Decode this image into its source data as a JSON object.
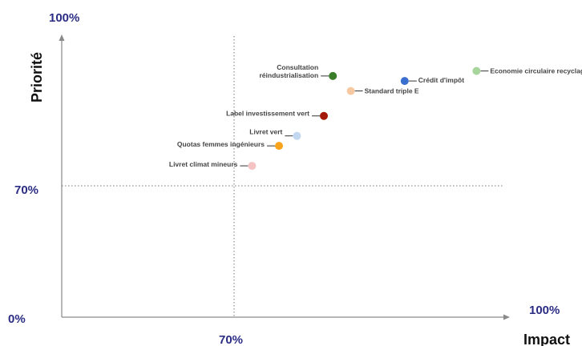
{
  "colors": {
    "tick_label": "#2b2d84",
    "axis": "#8a8a8a",
    "reference_line": "#777777",
    "leader": "#333333"
  },
  "chart_data": {
    "type": "scatter",
    "xlabel": "Impact",
    "ylabel": "Priorité",
    "xlim": [
      0,
      100
    ],
    "ylim": [
      0,
      100
    ],
    "tick_labels": {
      "x_origin": "0%",
      "x_mid": "70%",
      "x_max": "100%",
      "y_mid": "70%",
      "y_max": "100%"
    },
    "reference_lines": {
      "x": 70,
      "y": 70
    },
    "points": [
      {
        "label": "Economie circulaire recyclage",
        "x": 97,
        "y": 93,
        "color": "#a8d59b"
      },
      {
        "label": "Crédit d'impôt",
        "x": 89,
        "y": 91,
        "color": "#3a6fd0"
      },
      {
        "label": "Consultation réindustrialisation",
        "x": 81,
        "y": 92,
        "color": "#3a7d28"
      },
      {
        "label": "Standard triple E",
        "x": 83,
        "y": 89,
        "color": "#f7c9a3"
      },
      {
        "label": "Label investissement vert",
        "x": 80,
        "y": 84,
        "color": "#a5190b"
      },
      {
        "label": "Livret vert",
        "x": 77,
        "y": 80,
        "color": "#c3d8f0"
      },
      {
        "label": "Quotas femmes ingénieurs",
        "x": 75,
        "y": 78,
        "color": "#f7a31c"
      },
      {
        "label": "Livret climat mineurs",
        "x": 72,
        "y": 74,
        "color": "#f5c3c3"
      }
    ]
  }
}
